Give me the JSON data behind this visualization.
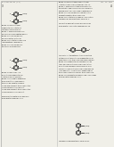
{
  "background_color": "#ffffff",
  "page_bg": "#f0efe8",
  "border_color": "#999999",
  "text_color": "#1a1a1a",
  "gray_text": "#666666",
  "structure_color": "#1a1a1a",
  "divider_color": "#bbbbbb",
  "header_left": "US 8,981,024 B2 (1-4)",
  "header_right": "Apr. 24, 2014",
  "page_num_left": "3",
  "page_num_right": "4"
}
